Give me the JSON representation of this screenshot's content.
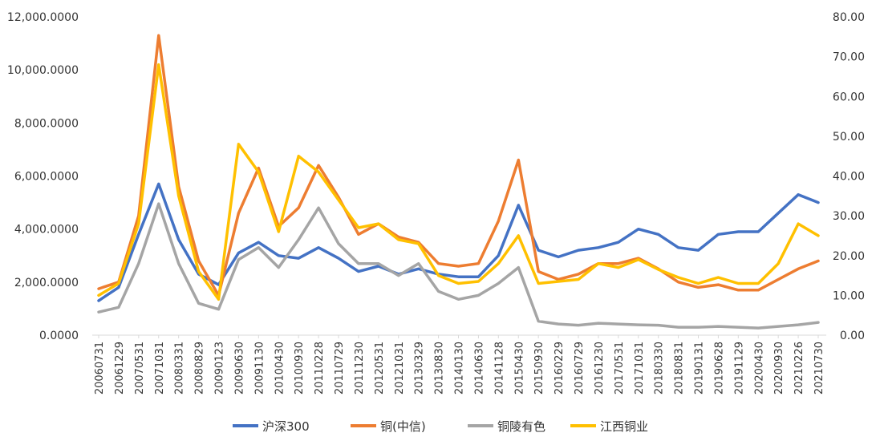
{
  "chart_data": {
    "type": "line",
    "title": "",
    "xlabel": "",
    "ylabel": "",
    "x_tick_labels": [
      "20060731",
      "20061229",
      "20070531",
      "20071031",
      "20080331",
      "20080829",
      "20090123",
      "20090630",
      "20091130",
      "20100430",
      "20100930",
      "20110228",
      "20110729",
      "20111230",
      "20120531",
      "20121031",
      "20130329",
      "20130830",
      "20140130",
      "20140630",
      "20141128",
      "20150430",
      "20150930",
      "20160229",
      "20160729",
      "20161230",
      "20170531",
      "20171031",
      "20180330",
      "20180831",
      "20190131",
      "20190628",
      "20191129",
      "20200430",
      "20200930",
      "20210226",
      "20210730"
    ],
    "y_left": {
      "ylim": [
        0,
        12000
      ],
      "ticks": [
        "0.0000",
        "2,000.0000",
        "4,000.0000",
        "6,000.0000",
        "8,000.0000",
        "10,000.0000",
        "12,000.0000"
      ],
      "tick_values": [
        0,
        2000,
        4000,
        6000,
        8000,
        10000,
        12000
      ]
    },
    "y_right": {
      "ylim": [
        0,
        80
      ],
      "ticks": [
        "0.00",
        "10.00",
        "20.00",
        "30.00",
        "40.00",
        "50.00",
        "60.00",
        "70.00",
        "80.00"
      ],
      "tick_values": [
        0,
        10,
        20,
        30,
        40,
        50,
        60,
        70,
        80
      ]
    },
    "legend_position": "bottom",
    "grid": false,
    "series": [
      {
        "name": "沪深300",
        "axis": "left",
        "color": "#4472C4",
        "points": [
          [
            "20060731",
            1300
          ],
          [
            "20061229",
            1800
          ],
          [
            "20070531",
            3800
          ],
          [
            "20071031",
            5700
          ],
          [
            "20080331",
            3600
          ],
          [
            "20080829",
            2300
          ],
          [
            "20090123",
            1900
          ],
          [
            "20090630",
            3100
          ],
          [
            "20091130",
            3500
          ],
          [
            "20100430",
            3000
          ],
          [
            "20100930",
            2900
          ],
          [
            "20110228",
            3300
          ],
          [
            "20110729",
            2900
          ],
          [
            "20111230",
            2400
          ],
          [
            "20120531",
            2600
          ],
          [
            "20121031",
            2300
          ],
          [
            "20130329",
            2500
          ],
          [
            "20130830",
            2300
          ],
          [
            "20140130",
            2200
          ],
          [
            "20140630",
            2200
          ],
          [
            "20141128",
            3000
          ],
          [
            "20150430",
            4900
          ],
          [
            "20150930",
            3200
          ],
          [
            "20160229",
            2950
          ],
          [
            "20160729",
            3200
          ],
          [
            "20161230",
            3300
          ],
          [
            "20170531",
            3500
          ],
          [
            "20171031",
            4000
          ],
          [
            "20180330",
            3800
          ],
          [
            "20180831",
            3300
          ],
          [
            "20190131",
            3200
          ],
          [
            "20190628",
            3800
          ],
          [
            "20191129",
            3900
          ],
          [
            "20200430",
            3900
          ],
          [
            "20200930",
            4600
          ],
          [
            "20210226",
            5300
          ],
          [
            "20210730",
            5000
          ]
        ]
      },
      {
        "name": "铜(中信)",
        "axis": "left",
        "color": "#ED7D31",
        "points": [
          [
            "20060731",
            1750
          ],
          [
            "20061229",
            2000
          ],
          [
            "20070531",
            4500
          ],
          [
            "20071031",
            11300
          ],
          [
            "20080331",
            5600
          ],
          [
            "20080829",
            2800
          ],
          [
            "20090123",
            1500
          ],
          [
            "20090630",
            4600
          ],
          [
            "20091130",
            6300
          ],
          [
            "20100430",
            4100
          ],
          [
            "20100930",
            4800
          ],
          [
            "20110228",
            6400
          ],
          [
            "20110729",
            5200
          ],
          [
            "20111230",
            3800
          ],
          [
            "20120531",
            4200
          ],
          [
            "20121031",
            3700
          ],
          [
            "20130329",
            3500
          ],
          [
            "20130830",
            2700
          ],
          [
            "20140130",
            2600
          ],
          [
            "20140630",
            2700
          ],
          [
            "20141128",
            4300
          ],
          [
            "20150430",
            6600
          ],
          [
            "20150930",
            2400
          ],
          [
            "20160229",
            2100
          ],
          [
            "20160729",
            2300
          ],
          [
            "20161230",
            2700
          ],
          [
            "20170531",
            2700
          ],
          [
            "20171031",
            2900
          ],
          [
            "20180330",
            2500
          ],
          [
            "20180831",
            2000
          ],
          [
            "20190131",
            1800
          ],
          [
            "20190628",
            1900
          ],
          [
            "20191129",
            1700
          ],
          [
            "20200430",
            1700
          ],
          [
            "20200930",
            2100
          ],
          [
            "20210226",
            2500
          ],
          [
            "20210730",
            2800
          ]
        ]
      },
      {
        "name": "铜陵有色",
        "axis": "right",
        "color": "#A5A5A5",
        "points": [
          [
            "20060731",
            5.8
          ],
          [
            "20061229",
            7
          ],
          [
            "20070531",
            18
          ],
          [
            "20071031",
            33
          ],
          [
            "20080331",
            18
          ],
          [
            "20080829",
            8
          ],
          [
            "20090123",
            6.5
          ],
          [
            "20090630",
            19
          ],
          [
            "20091130",
            22
          ],
          [
            "20100430",
            17
          ],
          [
            "20100930",
            24
          ],
          [
            "20110228",
            32
          ],
          [
            "20110729",
            23
          ],
          [
            "20111230",
            18
          ],
          [
            "20120531",
            18
          ],
          [
            "20121031",
            15
          ],
          [
            "20130329",
            18
          ],
          [
            "20130830",
            11
          ],
          [
            "20140130",
            9
          ],
          [
            "20140630",
            10
          ],
          [
            "20141128",
            13
          ],
          [
            "20150430",
            17
          ],
          [
            "20150930",
            3.5
          ],
          [
            "20160229",
            2.8
          ],
          [
            "20160729",
            2.5
          ],
          [
            "20161230",
            3
          ],
          [
            "20170531",
            2.8
          ],
          [
            "20171031",
            2.6
          ],
          [
            "20180330",
            2.5
          ],
          [
            "20180831",
            2
          ],
          [
            "20190131",
            2
          ],
          [
            "20190628",
            2.2
          ],
          [
            "20191129",
            2
          ],
          [
            "20200430",
            1.8
          ],
          [
            "20200930",
            2.2
          ],
          [
            "20210226",
            2.6
          ],
          [
            "20210730",
            3.2
          ]
        ]
      },
      {
        "name": "江西铜业",
        "axis": "right",
        "color": "#FFC000",
        "points": [
          [
            "20060731",
            10
          ],
          [
            "20061229",
            13
          ],
          [
            "20070531",
            28
          ],
          [
            "20071031",
            68
          ],
          [
            "20080331",
            35
          ],
          [
            "20080829",
            16
          ],
          [
            "20090123",
            9
          ],
          [
            "20090630",
            48
          ],
          [
            "20091130",
            41
          ],
          [
            "20100430",
            26
          ],
          [
            "20100930",
            45
          ],
          [
            "20110228",
            41
          ],
          [
            "20110729",
            34
          ],
          [
            "20111230",
            27
          ],
          [
            "20120531",
            28
          ],
          [
            "20121031",
            24
          ],
          [
            "20130329",
            23
          ],
          [
            "20130830",
            15
          ],
          [
            "20140130",
            13
          ],
          [
            "20140630",
            13.5
          ],
          [
            "20141128",
            18
          ],
          [
            "20150430",
            25
          ],
          [
            "20150930",
            13
          ],
          [
            "20160229",
            13.5
          ],
          [
            "20160729",
            14
          ],
          [
            "20161230",
            18
          ],
          [
            "20170531",
            17
          ],
          [
            "20171031",
            19
          ],
          [
            "20180330",
            16.5
          ],
          [
            "20180831",
            14.5
          ],
          [
            "20190131",
            13
          ],
          [
            "20190628",
            14.5
          ],
          [
            "20191129",
            13
          ],
          [
            "20200430",
            13
          ],
          [
            "20200930",
            18
          ],
          [
            "20210226",
            28
          ],
          [
            "20210730",
            25
          ]
        ]
      }
    ]
  }
}
